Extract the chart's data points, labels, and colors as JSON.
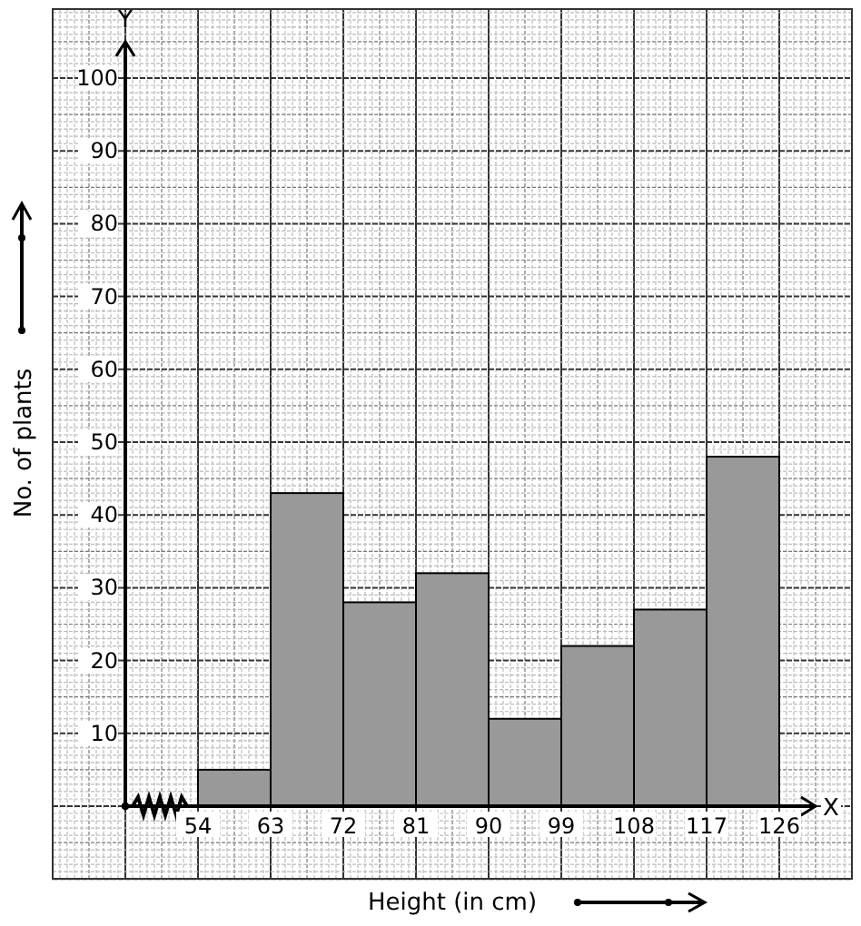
{
  "chart_data": {
    "type": "histogram",
    "xlabel": "Height (in cm)",
    "ylabel": "No. of plants",
    "bins": [
      54,
      63,
      72,
      81,
      90,
      99,
      108,
      117,
      126
    ],
    "values": [
      5,
      43,
      28,
      32,
      12,
      22,
      27,
      48
    ],
    "color": "#999999",
    "xlim": [
      45,
      135
    ],
    "ylim": [
      0,
      105
    ],
    "xticks": [
      54,
      63,
      72,
      81,
      90,
      99,
      108,
      117,
      126
    ],
    "yticks": [
      10,
      20,
      30,
      40,
      50,
      60,
      70,
      80,
      90,
      100
    ],
    "grid": true,
    "annotations": [
      "X",
      "Y"
    ]
  }
}
